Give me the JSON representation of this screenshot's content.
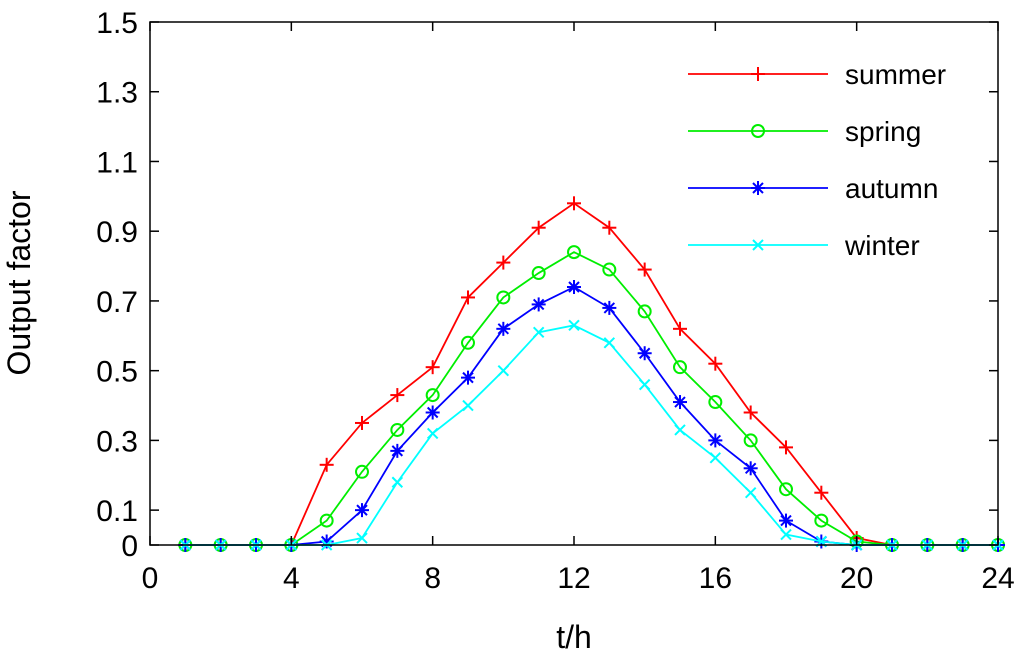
{
  "chart_data": {
    "type": "line",
    "title": "",
    "xlabel": "t/h",
    "ylabel": "Output factor",
    "xlim": [
      0,
      24
    ],
    "ylim": [
      0,
      1.5
    ],
    "xticks": [
      0,
      4,
      8,
      12,
      16,
      20,
      24
    ],
    "xtick_labels": [
      "0",
      "4",
      "8",
      "12",
      "16",
      "20",
      "24"
    ],
    "yticks": [
      0,
      0.1,
      0.3,
      0.5,
      0.7,
      0.9,
      1.1,
      1.3,
      1.5
    ],
    "ytick_labels": [
      "0",
      "0.1",
      "0.3",
      "0.5",
      "0.7",
      "0.9",
      "1.1",
      "1.3",
      "1.5"
    ],
    "grid": false,
    "legend_position": "top-right",
    "x": [
      1,
      2,
      3,
      4,
      5,
      6,
      7,
      8,
      9,
      10,
      11,
      12,
      13,
      14,
      15,
      16,
      17,
      18,
      19,
      20,
      21,
      22,
      23,
      24
    ],
    "series": [
      {
        "name": "summer",
        "color": "#ff0000",
        "marker": "plus",
        "values": [
          0,
          0,
          0,
          0,
          0.23,
          0.35,
          0.43,
          0.51,
          0.71,
          0.81,
          0.91,
          0.98,
          0.91,
          0.79,
          0.62,
          0.52,
          0.38,
          0.28,
          0.15,
          0.02,
          0,
          0,
          0,
          0
        ]
      },
      {
        "name": "spring",
        "color": "#00ee00",
        "marker": "circle",
        "values": [
          0,
          0,
          0,
          0,
          0.07,
          0.21,
          0.33,
          0.43,
          0.58,
          0.71,
          0.78,
          0.84,
          0.79,
          0.67,
          0.51,
          0.41,
          0.3,
          0.16,
          0.07,
          0.01,
          0,
          0,
          0,
          0
        ]
      },
      {
        "name": "autumn",
        "color": "#0000ff",
        "marker": "star",
        "values": [
          0,
          0,
          0,
          0,
          0.01,
          0.1,
          0.27,
          0.38,
          0.48,
          0.62,
          0.69,
          0.74,
          0.68,
          0.55,
          0.41,
          0.3,
          0.22,
          0.07,
          0.01,
          0,
          0,
          0,
          0,
          0
        ]
      },
      {
        "name": "winter",
        "color": "#00ffff",
        "marker": "x",
        "values": [
          0,
          0,
          0,
          0,
          0,
          0.02,
          0.18,
          0.32,
          0.4,
          0.5,
          0.61,
          0.63,
          0.58,
          0.46,
          0.33,
          0.25,
          0.15,
          0.03,
          0.01,
          0,
          0,
          0,
          0,
          0
        ]
      }
    ]
  }
}
